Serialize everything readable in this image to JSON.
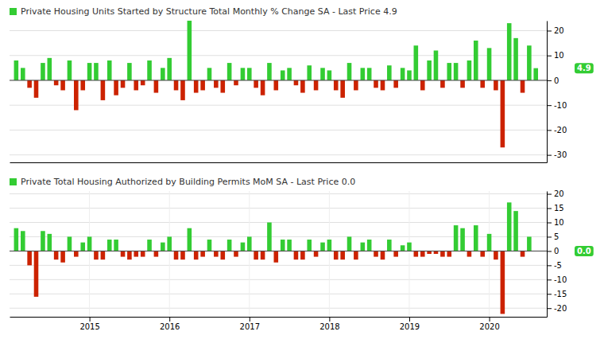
{
  "chart_data": [
    {
      "type": "bar",
      "title": "Private Housing Units Started by Structure Total Monthly % Change SA - Last Price 4.9",
      "x": [
        2014.083,
        2014.167,
        2014.25,
        2014.333,
        2014.417,
        2014.5,
        2014.583,
        2014.667,
        2014.75,
        2014.833,
        2014.917,
        2015.0,
        2015.083,
        2015.167,
        2015.25,
        2015.333,
        2015.417,
        2015.5,
        2015.583,
        2015.667,
        2015.75,
        2015.833,
        2015.917,
        2016.0,
        2016.083,
        2016.167,
        2016.25,
        2016.333,
        2016.417,
        2016.5,
        2016.583,
        2016.667,
        2016.75,
        2016.833,
        2016.917,
        2017.0,
        2017.083,
        2017.167,
        2017.25,
        2017.333,
        2017.417,
        2017.5,
        2017.583,
        2017.667,
        2017.75,
        2017.833,
        2017.917,
        2018.0,
        2018.083,
        2018.167,
        2018.25,
        2018.333,
        2018.417,
        2018.5,
        2018.583,
        2018.667,
        2018.75,
        2018.833,
        2018.917,
        2019.0,
        2019.083,
        2019.167,
        2019.25,
        2019.333,
        2019.417,
        2019.5,
        2019.583,
        2019.667,
        2019.75,
        2019.833,
        2019.917,
        2020.0,
        2020.083,
        2020.167,
        2020.25,
        2020.333,
        2020.417,
        2020.5,
        2020.583
      ],
      "values": [
        8,
        5,
        -3,
        -7,
        7,
        9,
        -2,
        -4,
        8,
        -12,
        -4,
        7,
        7,
        -8,
        8,
        -6,
        -3,
        7,
        -4,
        -2,
        8,
        -5,
        5,
        9,
        -4,
        -8,
        24,
        -5,
        -4,
        5,
        -3,
        -5,
        7,
        -2,
        5,
        5,
        -3,
        -6,
        7,
        -4,
        4,
        5,
        -2,
        -5,
        6,
        -4,
        5,
        4,
        -4,
        -7,
        7,
        -4,
        5,
        5,
        -3,
        -4,
        6,
        -3,
        5,
        4,
        14,
        -4,
        8,
        12,
        -3,
        7,
        7,
        -3,
        8,
        16,
        -3,
        13,
        -4,
        -27,
        23,
        17,
        -5,
        14,
        4.9
      ],
      "colors": [
        "#33cc33",
        "#33cc33",
        "#cc2200",
        "#cc2200",
        "#33cc33",
        "#33cc33",
        "#cc2200",
        "#cc2200",
        "#33cc33",
        "#cc2200",
        "#cc2200",
        "#33cc33",
        "#33cc33",
        "#cc2200",
        "#33cc33",
        "#cc2200",
        "#cc2200",
        "#33cc33",
        "#cc2200",
        "#cc2200",
        "#33cc33",
        "#cc2200",
        "#33cc33",
        "#33cc33",
        "#cc2200",
        "#cc2200",
        "#33cc33",
        "#cc2200",
        "#cc2200",
        "#33cc33",
        "#cc2200",
        "#cc2200",
        "#33cc33",
        "#cc2200",
        "#33cc33",
        "#33cc33",
        "#cc2200",
        "#cc2200",
        "#33cc33",
        "#cc2200",
        "#33cc33",
        "#33cc33",
        "#cc2200",
        "#cc2200",
        "#33cc33",
        "#cc2200",
        "#33cc33",
        "#33cc33",
        "#cc2200",
        "#cc2200",
        "#33cc33",
        "#cc2200",
        "#33cc33",
        "#33cc33",
        "#cc2200",
        "#cc2200",
        "#33cc33",
        "#cc2200",
        "#33cc33",
        "#33cc33",
        "#33cc33",
        "#cc2200",
        "#33cc33",
        "#33cc33",
        "#cc2200",
        "#33cc33",
        "#33cc33",
        "#cc2200",
        "#33cc33",
        "#33cc33",
        "#cc2200",
        "#33cc33",
        "#cc2200",
        "#cc2200",
        "#33cc33",
        "#33cc33",
        "#cc2200",
        "#33cc33",
        "#33cc33"
      ],
      "xlim": [
        2014.0,
        2020.72
      ],
      "ylim": [
        -33,
        24
      ],
      "yticks": [
        -30,
        -20,
        -10,
        0,
        10,
        20
      ],
      "tick_labels": "y",
      "grid": true,
      "annotations": [
        {
          "text": "4.9",
          "y": 4.9,
          "color": "#33cc33"
        }
      ]
    },
    {
      "type": "bar",
      "title": "Private Total Housing Authorized by Building Permits MoM SA - Last Price 0.0",
      "x": [
        2014.083,
        2014.167,
        2014.25,
        2014.333,
        2014.417,
        2014.5,
        2014.583,
        2014.667,
        2014.75,
        2014.833,
        2014.917,
        2015.0,
        2015.083,
        2015.167,
        2015.25,
        2015.333,
        2015.417,
        2015.5,
        2015.583,
        2015.667,
        2015.75,
        2015.833,
        2015.917,
        2016.0,
        2016.083,
        2016.167,
        2016.25,
        2016.333,
        2016.417,
        2016.5,
        2016.583,
        2016.667,
        2016.75,
        2016.833,
        2016.917,
        2017.0,
        2017.083,
        2017.167,
        2017.25,
        2017.333,
        2017.417,
        2017.5,
        2017.583,
        2017.667,
        2017.75,
        2017.833,
        2017.917,
        2018.0,
        2018.083,
        2018.167,
        2018.25,
        2018.333,
        2018.417,
        2018.5,
        2018.583,
        2018.667,
        2018.75,
        2018.833,
        2018.917,
        2019.0,
        2019.083,
        2019.167,
        2019.25,
        2019.333,
        2019.417,
        2019.5,
        2019.583,
        2019.667,
        2019.75,
        2019.833,
        2019.917,
        2020.0,
        2020.083,
        2020.167,
        2020.25,
        2020.333,
        2020.417,
        2020.5,
        2020.583
      ],
      "values": [
        8,
        7,
        -5,
        -16,
        7,
        6,
        -3,
        -4,
        5,
        -2,
        3,
        5,
        -3,
        -3,
        4,
        4,
        -2,
        -3,
        -2,
        -2,
        4,
        -2,
        3,
        5,
        -3,
        -3,
        8,
        -3,
        -2,
        4,
        -2,
        -3,
        4,
        -2,
        3,
        5,
        -3,
        -3,
        10,
        -4,
        4,
        4,
        -3,
        -3,
        4,
        -2,
        3,
        4,
        -3,
        -3,
        5,
        -3,
        3,
        4,
        -2,
        -3,
        4,
        -2,
        2,
        3,
        -2,
        -2,
        -1,
        -1,
        -2,
        -2,
        9,
        8,
        -2,
        9,
        -2,
        6,
        -3,
        -22,
        17,
        14,
        -2,
        5,
        0.0
      ],
      "colors": [
        "#33cc33",
        "#33cc33",
        "#cc2200",
        "#cc2200",
        "#33cc33",
        "#33cc33",
        "#cc2200",
        "#cc2200",
        "#33cc33",
        "#cc2200",
        "#33cc33",
        "#33cc33",
        "#cc2200",
        "#cc2200",
        "#33cc33",
        "#33cc33",
        "#cc2200",
        "#cc2200",
        "#cc2200",
        "#cc2200",
        "#33cc33",
        "#cc2200",
        "#33cc33",
        "#33cc33",
        "#cc2200",
        "#cc2200",
        "#33cc33",
        "#cc2200",
        "#cc2200",
        "#33cc33",
        "#cc2200",
        "#cc2200",
        "#33cc33",
        "#cc2200",
        "#33cc33",
        "#33cc33",
        "#cc2200",
        "#cc2200",
        "#33cc33",
        "#cc2200",
        "#33cc33",
        "#33cc33",
        "#cc2200",
        "#cc2200",
        "#33cc33",
        "#cc2200",
        "#33cc33",
        "#33cc33",
        "#cc2200",
        "#cc2200",
        "#33cc33",
        "#cc2200",
        "#33cc33",
        "#33cc33",
        "#cc2200",
        "#cc2200",
        "#33cc33",
        "#cc2200",
        "#33cc33",
        "#33cc33",
        "#cc2200",
        "#cc2200",
        "#cc2200",
        "#cc2200",
        "#cc2200",
        "#cc2200",
        "#33cc33",
        "#33cc33",
        "#cc2200",
        "#33cc33",
        "#cc2200",
        "#33cc33",
        "#cc2200",
        "#cc2200",
        "#33cc33",
        "#33cc33",
        "#cc2200",
        "#33cc33",
        "#33cc33"
      ],
      "xlim": [
        2014.0,
        2020.72
      ],
      "ylim": [
        -23,
        21
      ],
      "xticks": [
        2015,
        2016,
        2017,
        2018,
        2019,
        2020
      ],
      "yticks": [
        -20,
        -15,
        -10,
        -5,
        0,
        5,
        10,
        15,
        20
      ],
      "grid": true,
      "annotations": [
        {
          "text": "0.0",
          "y": 0.0,
          "color": "#33cc33"
        }
      ]
    }
  ]
}
